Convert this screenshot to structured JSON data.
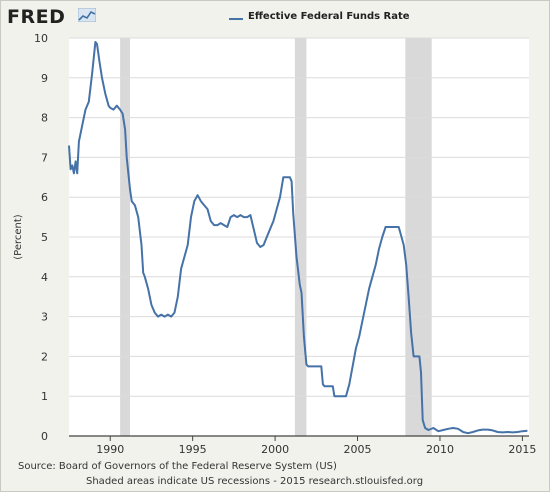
{
  "logo_text": "FRED",
  "icons": {
    "logo_mark": "line-chart-icon"
  },
  "footer": {
    "source": "Source: Board of Governors of the Federal Reserve System (US)",
    "note": "Shaded areas indicate US recessions - 2015 research.stlouisfed.org"
  },
  "colors": {
    "line": "#4572a7",
    "recession": "#d9d9d9",
    "grid": "#dcdcdc",
    "plot_bg": "#ffffff"
  },
  "chart_data": {
    "type": "line",
    "title": "",
    "xlabel": "",
    "ylabel": "(Percent)",
    "xlim": [
      1987.5,
      2015.4
    ],
    "ylim": [
      0,
      10
    ],
    "y_ticks": [
      0,
      1,
      2,
      3,
      4,
      5,
      6,
      7,
      8,
      9,
      10
    ],
    "x_ticks": [
      1990,
      1995,
      2000,
      2005,
      2010,
      2015
    ],
    "grid": "horizontal",
    "legend": "top-center",
    "recessions": [
      [
        1990.6,
        1991.2
      ],
      [
        2001.2,
        2001.9
      ],
      [
        2007.9,
        2009.5
      ]
    ],
    "series": [
      {
        "name": "Effective Federal Funds Rate",
        "x": [
          1987.5,
          1987.6,
          1987.7,
          1987.8,
          1987.9,
          1988.0,
          1988.1,
          1988.3,
          1988.5,
          1988.7,
          1988.9,
          1989.1,
          1989.2,
          1989.35,
          1989.5,
          1989.7,
          1989.9,
          1990.0,
          1990.2,
          1990.4,
          1990.6,
          1990.75,
          1990.9,
          1991.0,
          1991.2,
          1991.3,
          1991.5,
          1991.7,
          1991.9,
          1992.0,
          1992.1,
          1992.3,
          1992.5,
          1992.7,
          1992.9,
          1993.1,
          1993.3,
          1993.5,
          1993.7,
          1993.9,
          1994.1,
          1994.3,
          1994.5,
          1994.7,
          1994.9,
          1995.1,
          1995.3,
          1995.5,
          1995.7,
          1995.9,
          1996.1,
          1996.3,
          1996.5,
          1996.7,
          1996.9,
          1997.1,
          1997.3,
          1997.5,
          1997.7,
          1997.9,
          1998.1,
          1998.3,
          1998.5,
          1998.7,
          1998.9,
          1999.1,
          1999.3,
          1999.5,
          1999.7,
          1999.9,
          2000.1,
          2000.3,
          2000.5,
          2000.7,
          2000.9,
          2001.0,
          2001.1,
          2001.3,
          2001.5,
          2001.6,
          2001.75,
          2001.9,
          2002.0,
          2002.2,
          2002.5,
          2002.8,
          2002.9,
          2003.0,
          2003.3,
          2003.5,
          2003.6,
          2003.8,
          2004.0,
          2004.3,
          2004.5,
          2004.7,
          2004.9,
          2005.1,
          2005.3,
          2005.5,
          2005.7,
          2005.9,
          2006.1,
          2006.3,
          2006.5,
          2006.7,
          2006.9,
          2007.2,
          2007.5,
          2007.6,
          2007.8,
          2007.95,
          2008.1,
          2008.25,
          2008.4,
          2008.6,
          2008.75,
          2008.85,
          2008.95,
          2009.1,
          2009.3,
          2009.6,
          2009.9,
          2010.2,
          2010.5,
          2010.8,
          2011.1,
          2011.4,
          2011.7,
          2012.0,
          2012.3,
          2012.6,
          2012.9,
          2013.2,
          2013.5,
          2013.8,
          2014.1,
          2014.4,
          2014.7,
          2015.0,
          2015.3
        ],
        "y": [
          7.3,
          6.7,
          6.8,
          6.6,
          6.9,
          6.6,
          7.4,
          7.8,
          8.2,
          8.4,
          9.1,
          9.9,
          9.85,
          9.4,
          9.0,
          8.6,
          8.3,
          8.25,
          8.2,
          8.3,
          8.2,
          8.1,
          7.7,
          7.0,
          6.2,
          5.9,
          5.8,
          5.5,
          4.8,
          4.1,
          4.0,
          3.7,
          3.3,
          3.1,
          3.0,
          3.05,
          3.0,
          3.05,
          3.0,
          3.1,
          3.5,
          4.2,
          4.5,
          4.8,
          5.5,
          5.9,
          6.05,
          5.9,
          5.8,
          5.7,
          5.4,
          5.3,
          5.3,
          5.35,
          5.3,
          5.25,
          5.5,
          5.55,
          5.5,
          5.55,
          5.5,
          5.5,
          5.55,
          5.2,
          4.85,
          4.75,
          4.8,
          5.0,
          5.2,
          5.4,
          5.7,
          6.0,
          6.5,
          6.5,
          6.5,
          6.4,
          5.6,
          4.5,
          3.8,
          3.6,
          2.5,
          1.8,
          1.75,
          1.75,
          1.75,
          1.75,
          1.3,
          1.25,
          1.25,
          1.25,
          1.0,
          1.0,
          1.0,
          1.0,
          1.3,
          1.75,
          2.2,
          2.5,
          2.9,
          3.3,
          3.7,
          4.0,
          4.3,
          4.7,
          5.0,
          5.25,
          5.25,
          5.25,
          5.25,
          5.1,
          4.8,
          4.3,
          3.5,
          2.6,
          2.0,
          2.0,
          2.0,
          1.6,
          0.4,
          0.2,
          0.15,
          0.2,
          0.12,
          0.15,
          0.18,
          0.2,
          0.18,
          0.1,
          0.07,
          0.1,
          0.14,
          0.16,
          0.16,
          0.14,
          0.1,
          0.09,
          0.1,
          0.09,
          0.1,
          0.12,
          0.13
        ]
      }
    ]
  }
}
